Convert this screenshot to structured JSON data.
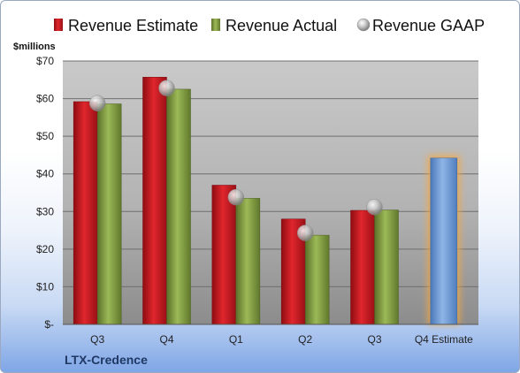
{
  "chart_data": {
    "type": "bar",
    "title": "",
    "ylabel": "$millions",
    "company": "LTX-Credence",
    "categories": [
      "Q3",
      "Q4",
      "Q1",
      "Q2",
      "Q3",
      "Q4 Estimate"
    ],
    "ylim": [
      0,
      70
    ],
    "y_ticks": [
      {
        "value": 0,
        "label": "$-"
      },
      {
        "value": 10,
        "label": "$10"
      },
      {
        "value": 20,
        "label": "$20"
      },
      {
        "value": 30,
        "label": "$30"
      },
      {
        "value": 40,
        "label": "$40"
      },
      {
        "value": 50,
        "label": "$50"
      },
      {
        "value": 60,
        "label": "$60"
      },
      {
        "value": 70,
        "label": "$70"
      }
    ],
    "series": [
      {
        "name": "Revenue Estimate",
        "type": "bar",
        "color": "#c0171e",
        "values": [
          59.2,
          65.7,
          37.0,
          28.0,
          30.3,
          null
        ]
      },
      {
        "name": "Revenue Actual",
        "type": "bar",
        "color": "#7f9a3e",
        "values": [
          58.6,
          62.5,
          33.5,
          23.7,
          30.4,
          null
        ]
      },
      {
        "name": "Revenue GAAP",
        "type": "marker",
        "color": "#b8b8b8",
        "values": [
          58.8,
          62.8,
          33.8,
          24.3,
          31.2,
          null
        ]
      },
      {
        "name": "",
        "type": "bar",
        "color": "#6e9bd4",
        "highlight": "#f5a742",
        "values": [
          null,
          null,
          null,
          null,
          null,
          44.2
        ]
      }
    ],
    "grid": true,
    "legend_position": "top"
  }
}
